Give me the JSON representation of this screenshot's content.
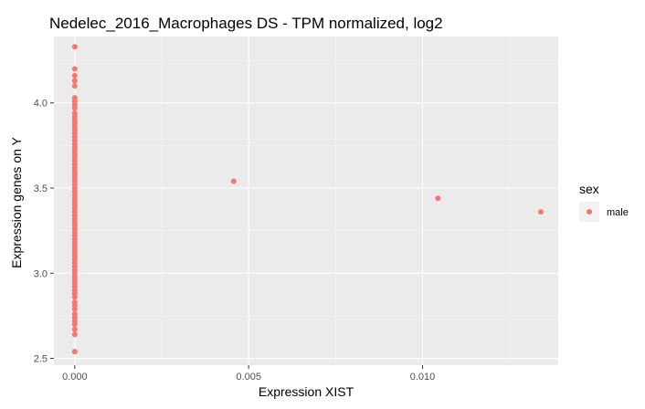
{
  "chart_data": {
    "type": "scatter",
    "title": "Nedelec_2016_Macrophages DS - TPM normalized, log2",
    "xlabel": "Expression XIST",
    "ylabel": "Expression genes on Y",
    "xlim": [
      -0.0006,
      0.0139
    ],
    "ylim": [
      2.46,
      4.39
    ],
    "x_ticks": [
      0.0,
      0.005,
      0.01
    ],
    "x_tick_labels": [
      "0.000",
      "0.005",
      "0.010"
    ],
    "y_ticks": [
      2.5,
      3.0,
      3.5,
      4.0
    ],
    "y_tick_labels": [
      "2.5",
      "3.0",
      "3.5",
      "4.0"
    ],
    "grid": true,
    "legend": {
      "title": "sex",
      "position": "right",
      "entries": [
        {
          "label": "male",
          "color": "#F8766D"
        }
      ]
    },
    "colors": {
      "panel": "#EBEBEB",
      "grid_major": "#FFFFFF",
      "grid_minor": "#F5F5F5",
      "point": "#F8766D"
    },
    "series": [
      {
        "name": "male",
        "color": "#F8766D",
        "points": [
          [
            0.0,
            4.33
          ],
          [
            0.0,
            4.2
          ],
          [
            0.0,
            4.16
          ],
          [
            0.0,
            4.13
          ],
          [
            0.0,
            4.1
          ],
          [
            0.0,
            4.03
          ],
          [
            0.0,
            4.01
          ],
          [
            0.0,
            3.99
          ],
          [
            0.0,
            3.97
          ],
          [
            0.0,
            3.94
          ],
          [
            0.0,
            3.92
          ],
          [
            0.0,
            3.9
          ],
          [
            0.0,
            3.88
          ],
          [
            0.0,
            3.86
          ],
          [
            0.0,
            3.84
          ],
          [
            0.0,
            3.82
          ],
          [
            0.0,
            3.8
          ],
          [
            0.0,
            3.78
          ],
          [
            0.0,
            3.76
          ],
          [
            0.0,
            3.74
          ],
          [
            0.0,
            3.72
          ],
          [
            0.0,
            3.7
          ],
          [
            0.0,
            3.68
          ],
          [
            0.0,
            3.66
          ],
          [
            0.0,
            3.64
          ],
          [
            0.0,
            3.62
          ],
          [
            0.0,
            3.6
          ],
          [
            0.0,
            3.58
          ],
          [
            0.0,
            3.56
          ],
          [
            0.0,
            3.54
          ],
          [
            0.0,
            3.52
          ],
          [
            0.0,
            3.5
          ],
          [
            0.0,
            3.48
          ],
          [
            0.0,
            3.46
          ],
          [
            0.0,
            3.44
          ],
          [
            0.0,
            3.42
          ],
          [
            0.0,
            3.4
          ],
          [
            0.0,
            3.38
          ],
          [
            0.0,
            3.36
          ],
          [
            0.0,
            3.34
          ],
          [
            0.0,
            3.32
          ],
          [
            0.0,
            3.3
          ],
          [
            0.0,
            3.28
          ],
          [
            0.0,
            3.26
          ],
          [
            0.0,
            3.24
          ],
          [
            0.0,
            3.22
          ],
          [
            0.0,
            3.2
          ],
          [
            0.0,
            3.18
          ],
          [
            0.0,
            3.16
          ],
          [
            0.0,
            3.14
          ],
          [
            0.0,
            3.12
          ],
          [
            0.0,
            3.1
          ],
          [
            0.0,
            3.08
          ],
          [
            0.0,
            3.06
          ],
          [
            0.0,
            3.04
          ],
          [
            0.0,
            3.02
          ],
          [
            0.0,
            3.0
          ],
          [
            0.0,
            2.98
          ],
          [
            0.0,
            2.96
          ],
          [
            0.0,
            2.94
          ],
          [
            0.0,
            2.92
          ],
          [
            0.0,
            2.9
          ],
          [
            0.0,
            2.88
          ],
          [
            0.0,
            2.86
          ],
          [
            0.0,
            2.83
          ],
          [
            0.0,
            2.81
          ],
          [
            0.0,
            2.79
          ],
          [
            0.0,
            2.76
          ],
          [
            0.0,
            2.74
          ],
          [
            0.0,
            2.72
          ],
          [
            0.0,
            2.7
          ],
          [
            0.0,
            2.67
          ],
          [
            0.0,
            2.64
          ],
          [
            0.0,
            2.54
          ],
          [
            0.00457,
            3.54
          ],
          [
            0.01044,
            3.44
          ],
          [
            0.0134,
            3.36
          ]
        ]
      }
    ]
  }
}
